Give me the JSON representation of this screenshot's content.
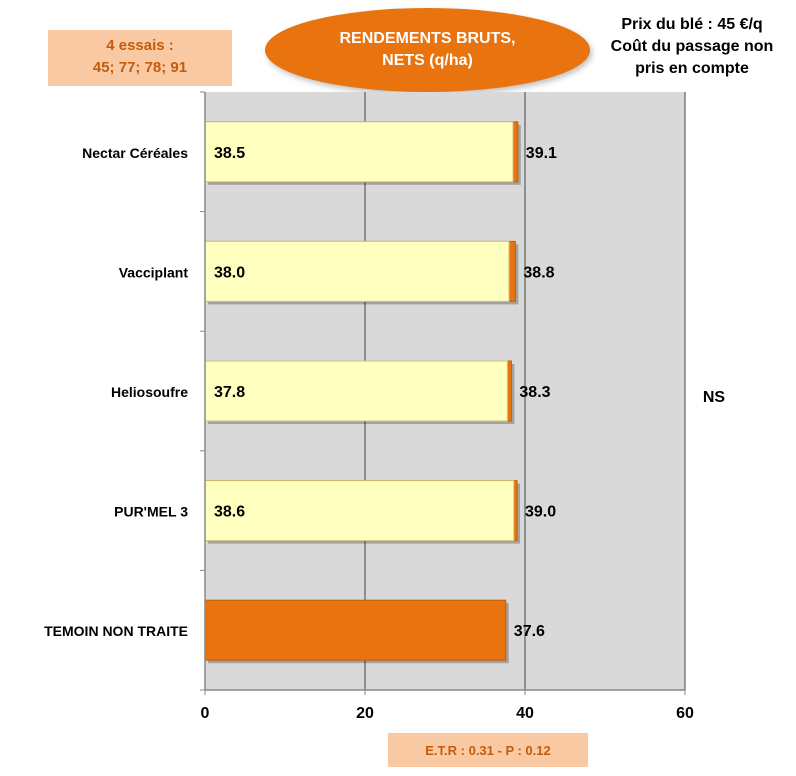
{
  "header": {
    "essais_line1": "4 essais :",
    "essais_line2": "45; 77; 78; 91",
    "title_line1": "RENDEMENTS BRUTS,",
    "title_line2": "NETS (q/ha)",
    "price_line1": "Prix du blé : 45 €/q",
    "price_line2": "Coût du passage non",
    "price_line3": "pris en compte"
  },
  "footer": {
    "stats": "E.T.R : 0.31 - P : 0.12"
  },
  "chart_data": {
    "type": "bar",
    "orientation": "horizontal",
    "categories": [
      "Nectar Céréales",
      "Vacciplant",
      "Heliosoufre",
      "PUR'MEL 3",
      "TEMOIN NON TRAITE"
    ],
    "series": [
      {
        "values": [
          38.5,
          38.0,
          37.8,
          38.6,
          null
        ],
        "color": "#ffffc0"
      },
      {
        "values": [
          39.1,
          38.8,
          38.3,
          39.0,
          37.6
        ],
        "color": "#e8730f"
      }
    ],
    "xlim": [
      0,
      60
    ],
    "ticks": [
      0,
      20,
      40,
      60
    ],
    "grid": true,
    "annotation": "NS",
    "colors": {
      "plot_bg": "#d9d9d9",
      "net_bar": "#ffffc0",
      "gross_bar": "#e8730f"
    }
  }
}
